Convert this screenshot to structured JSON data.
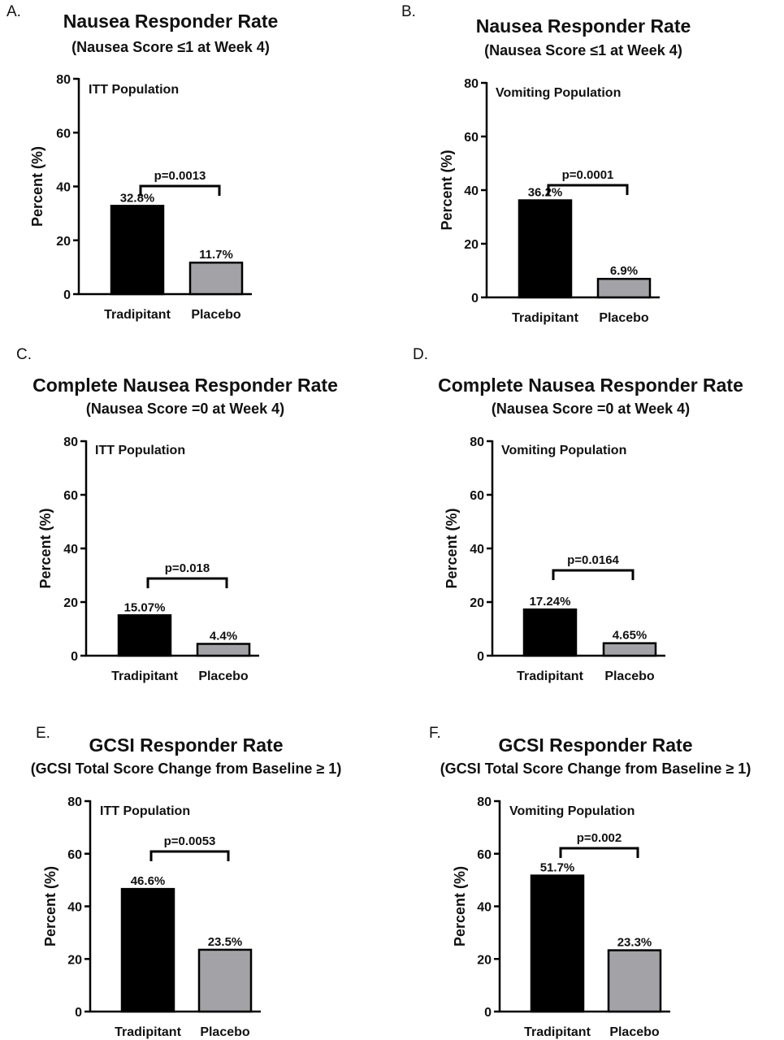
{
  "colors": {
    "tradipitant": "#000000",
    "placebo": "#a3a3a7",
    "stroke": "#000000"
  },
  "chart_data": [
    {
      "panel": "A.",
      "type": "bar",
      "title": "Nausea Responder Rate",
      "subtitle": "(Nausea Score ≤1 at Week 4)",
      "annotation": "ITT Population",
      "ylabel": "Percent (%)",
      "ylim": [
        0,
        80
      ],
      "yticks": [
        "0",
        "20",
        "40",
        "60",
        "80"
      ],
      "categories": [
        "Tradipitant",
        "Placebo"
      ],
      "values": [
        32.8,
        11.7
      ],
      "value_labels": [
        "32.8%",
        "11.7%"
      ],
      "pvalue": "p=0.0013"
    },
    {
      "panel": "B.",
      "type": "bar",
      "title": "Nausea Responder Rate",
      "subtitle": "(Nausea Score ≤1 at Week 4)",
      "annotation": "Vomiting Population",
      "ylabel": "Percent (%)",
      "ylim": [
        0,
        80
      ],
      "yticks": [
        "0",
        "20",
        "40",
        "60",
        "80"
      ],
      "categories": [
        "Tradipitant",
        "Placebo"
      ],
      "values": [
        36.2,
        6.9
      ],
      "value_labels": [
        "36.2%",
        "6.9%"
      ],
      "pvalue": "p=0.0001"
    },
    {
      "panel": "C.",
      "type": "bar",
      "title": "Complete Nausea Responder Rate",
      "subtitle": "(Nausea Score =0 at Week 4)",
      "annotation": "ITT Population",
      "ylabel": "Percent (%)",
      "ylim": [
        0,
        80
      ],
      "yticks": [
        "0",
        "20",
        "40",
        "60",
        "80"
      ],
      "categories": [
        "Tradipitant",
        "Placebo"
      ],
      "values": [
        15.07,
        4.4
      ],
      "value_labels": [
        "15.07%",
        "4.4%"
      ],
      "pvalue": "p=0.018"
    },
    {
      "panel": "D.",
      "type": "bar",
      "title": "Complete Nausea Responder Rate",
      "subtitle": "(Nausea Score =0 at Week 4)",
      "annotation": "Vomiting Population",
      "ylabel": "Percent (%)",
      "ylim": [
        0,
        80
      ],
      "yticks": [
        "0",
        "20",
        "40",
        "60",
        "80"
      ],
      "categories": [
        "Tradipitant",
        "Placebo"
      ],
      "values": [
        17.24,
        4.65
      ],
      "value_labels": [
        "17.24%",
        "4.65%"
      ],
      "pvalue": "p=0.0164"
    },
    {
      "panel": "E.",
      "type": "bar",
      "title": "GCSI Responder Rate",
      "subtitle": "(GCSI Total Score Change from Baseline  ≥ 1)",
      "annotation": "ITT Population",
      "ylabel": "Percent (%)",
      "ylim": [
        0,
        80
      ],
      "yticks": [
        "0",
        "20",
        "40",
        "60",
        "80"
      ],
      "categories": [
        "Tradipitant",
        "Placebo"
      ],
      "values": [
        46.6,
        23.5
      ],
      "value_labels": [
        "46.6%",
        "23.5%"
      ],
      "pvalue": "p=0.0053"
    },
    {
      "panel": "F.",
      "type": "bar",
      "title": "GCSI Responder Rate",
      "subtitle": "(GCSI Total Score Change from Baseline  ≥ 1)",
      "annotation": "Vomiting Population",
      "ylabel": "Percent (%)",
      "ylim": [
        0,
        80
      ],
      "yticks": [
        "0",
        "20",
        "40",
        "60",
        "80"
      ],
      "categories": [
        "Tradipitant",
        "Placebo"
      ],
      "values": [
        51.7,
        23.3
      ],
      "value_labels": [
        "51.7%",
        "23.3%"
      ],
      "pvalue": "p=0.002"
    }
  ]
}
